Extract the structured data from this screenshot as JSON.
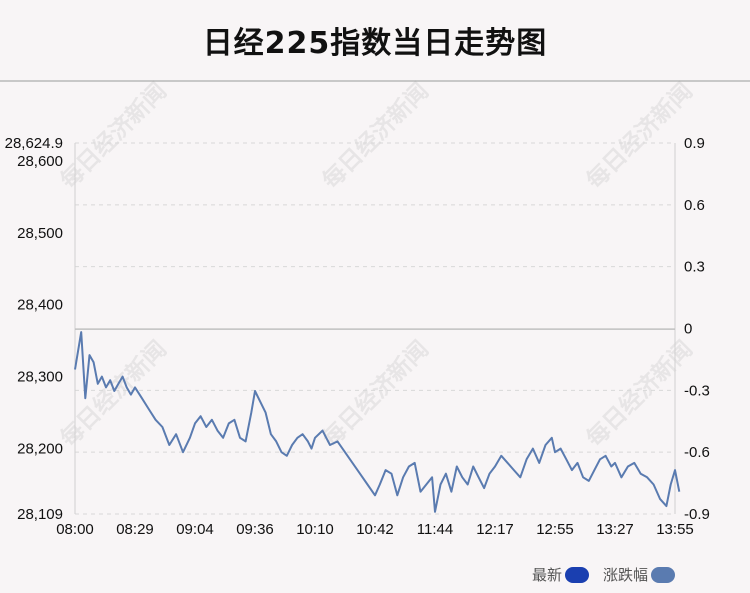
{
  "title": "日经225指数当日走势图",
  "watermark": "每日经济新闻",
  "legend": [
    {
      "label": "最新",
      "color": "#1a3fb0"
    },
    {
      "label": "涨跌幅",
      "color": "#5a7bb0"
    }
  ],
  "chart_data": {
    "type": "line",
    "title": "日经225指数当日走势图",
    "xlabel": "",
    "ylabel": "",
    "x_ticks": [
      "08:00",
      "08:29",
      "09:04",
      "09:36",
      "10:10",
      "10:42",
      "11:44",
      "12:17",
      "12:55",
      "13:27",
      "13:55"
    ],
    "y_left_ticks": [
      "28,624.9",
      "28,600",
      "28,500",
      "28,400",
      "28,300",
      "28,200",
      "28,109"
    ],
    "y_right_ticks": [
      "0.9",
      "0.6",
      "0.3",
      "0",
      "-0.3",
      "-0.6",
      "-0.9"
    ],
    "ylim": [
      28109,
      28624.9
    ],
    "ylim_right": [
      -0.9,
      0.9
    ],
    "prev_close": 28366,
    "line_color": "#5a7bb0",
    "grid": true,
    "series": [
      {
        "name": "最新",
        "x": [
          "08:00",
          "08:03",
          "08:05",
          "08:07",
          "08:09",
          "08:11",
          "08:13",
          "08:15",
          "08:17",
          "08:19",
          "08:21",
          "08:23",
          "08:25",
          "08:27",
          "08:29",
          "08:33",
          "08:37",
          "08:41",
          "08:45",
          "08:49",
          "08:53",
          "08:57",
          "09:01",
          "09:04",
          "09:07",
          "09:10",
          "09:13",
          "09:16",
          "09:19",
          "09:22",
          "09:25",
          "09:28",
          "09:31",
          "09:34",
          "09:36",
          "09:39",
          "09:42",
          "09:45",
          "09:48",
          "09:51",
          "09:54",
          "09:57",
          "10:00",
          "10:03",
          "10:06",
          "10:08",
          "10:10",
          "10:14",
          "10:18",
          "10:22",
          "10:26",
          "10:30",
          "10:34",
          "10:38",
          "10:42",
          "10:47",
          "10:53",
          "10:59",
          "11:05",
          "11:11",
          "11:17",
          "11:23",
          "11:29",
          "11:35",
          "11:41",
          "11:44",
          "11:47",
          "11:50",
          "11:53",
          "11:56",
          "11:59",
          "12:02",
          "12:05",
          "12:08",
          "12:11",
          "12:14",
          "12:17",
          "12:21",
          "12:25",
          "12:29",
          "12:33",
          "12:37",
          "12:41",
          "12:45",
          "12:49",
          "12:53",
          "12:55",
          "12:58",
          "13:01",
          "13:04",
          "13:07",
          "13:10",
          "13:13",
          "13:16",
          "13:19",
          "13:22",
          "13:25",
          "13:27",
          "13:30",
          "13:33",
          "13:36",
          "13:39",
          "13:42",
          "13:45",
          "13:48",
          "13:51",
          "13:53",
          "13:55",
          "13:57"
        ],
        "values": [
          28310,
          28362,
          28270,
          28330,
          28320,
          28290,
          28300,
          28285,
          28295,
          28280,
          28290,
          28300,
          28285,
          28275,
          28285,
          28270,
          28255,
          28240,
          28230,
          28205,
          28220,
          28195,
          28215,
          28235,
          28245,
          28230,
          28240,
          28225,
          28215,
          28235,
          28240,
          28215,
          28210,
          28250,
          28280,
          28265,
          28250,
          28220,
          28210,
          28195,
          28190,
          28205,
          28215,
          28220,
          28210,
          28200,
          28215,
          28225,
          28205,
          28210,
          28195,
          28180,
          28165,
          28150,
          28135,
          28150,
          28170,
          28165,
          28135,
          28160,
          28175,
          28180,
          28140,
          28150,
          28160,
          28112,
          28150,
          28165,
          28140,
          28175,
          28160,
          28150,
          28175,
          28160,
          28145,
          28165,
          28175,
          28190,
          28180,
          28170,
          28160,
          28185,
          28200,
          28180,
          28205,
          28215,
          28195,
          28200,
          28185,
          28170,
          28180,
          28160,
          28155,
          28170,
          28185,
          28190,
          28175,
          28180,
          28160,
          28175,
          28180,
          28165,
          28160,
          28150,
          28130,
          28120,
          28150,
          28170,
          28140
        ]
      }
    ]
  }
}
